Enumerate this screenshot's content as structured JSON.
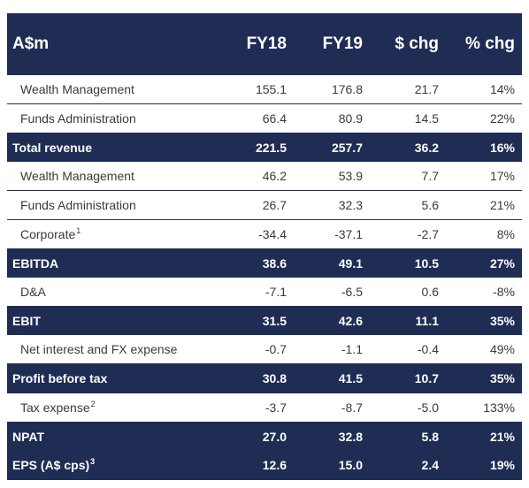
{
  "header": {
    "label": "A$m",
    "fy18": "FY18",
    "fy19": "FY19",
    "chg": "$ chg",
    "pct": "% chg"
  },
  "rows": [
    {
      "type": "detail",
      "label": "Wealth Management",
      "sup": "",
      "fy18": "155.1",
      "fy19": "176.8",
      "chg": "21.7",
      "pct": "14%"
    },
    {
      "type": "detail",
      "label": "Funds Administration",
      "sup": "",
      "fy18": "66.4",
      "fy19": "80.9",
      "chg": "14.5",
      "pct": "22%"
    },
    {
      "type": "total",
      "label": "Total revenue",
      "sup": "",
      "fy18": "221.5",
      "fy19": "257.7",
      "chg": "36.2",
      "pct": "16%"
    },
    {
      "type": "detail",
      "label": "Wealth Management",
      "sup": "",
      "fy18": "46.2",
      "fy19": "53.9",
      "chg": "7.7",
      "pct": "17%"
    },
    {
      "type": "detail",
      "label": "Funds Administration",
      "sup": "",
      "fy18": "26.7",
      "fy19": "32.3",
      "chg": "5.6",
      "pct": "21%"
    },
    {
      "type": "detail",
      "label": "Corporate",
      "sup": "1",
      "fy18": "-34.4",
      "fy19": "-37.1",
      "chg": "-2.7",
      "pct": "8%"
    },
    {
      "type": "total",
      "label": "EBITDA",
      "sup": "",
      "fy18": "38.6",
      "fy19": "49.1",
      "chg": "10.5",
      "pct": "27%"
    },
    {
      "type": "detail",
      "label": "D&A",
      "sup": "",
      "fy18": "-7.1",
      "fy19": "-6.5",
      "chg": "0.6",
      "pct": "-8%"
    },
    {
      "type": "total",
      "label": "EBIT",
      "sup": "",
      "fy18": "31.5",
      "fy19": "42.6",
      "chg": "11.1",
      "pct": "35%"
    },
    {
      "type": "detail",
      "label": "Net interest and FX expense",
      "sup": "",
      "fy18": "-0.7",
      "fy19": "-1.1",
      "chg": "-0.4",
      "pct": "49%"
    },
    {
      "type": "total",
      "label": "Profit before tax",
      "sup": "",
      "fy18": "30.8",
      "fy19": "41.5",
      "chg": "10.7",
      "pct": "35%"
    },
    {
      "type": "detail",
      "label": "Tax expense",
      "sup": "2",
      "fy18": "-3.7",
      "fy19": "-8.7",
      "chg": "-5.0",
      "pct": "133%"
    },
    {
      "type": "total",
      "label": "NPAT",
      "sup": "",
      "fy18": "27.0",
      "fy19": "32.8",
      "chg": "5.8",
      "pct": "21%"
    },
    {
      "type": "total",
      "label": "EPS (A$ cps)",
      "sup": "3",
      "fy18": "12.6",
      "fy19": "15.0",
      "chg": "2.4",
      "pct": "19%"
    }
  ],
  "colors": {
    "navy": "#1f2d55",
    "text": "#3a3a3a",
    "white": "#ffffff"
  }
}
